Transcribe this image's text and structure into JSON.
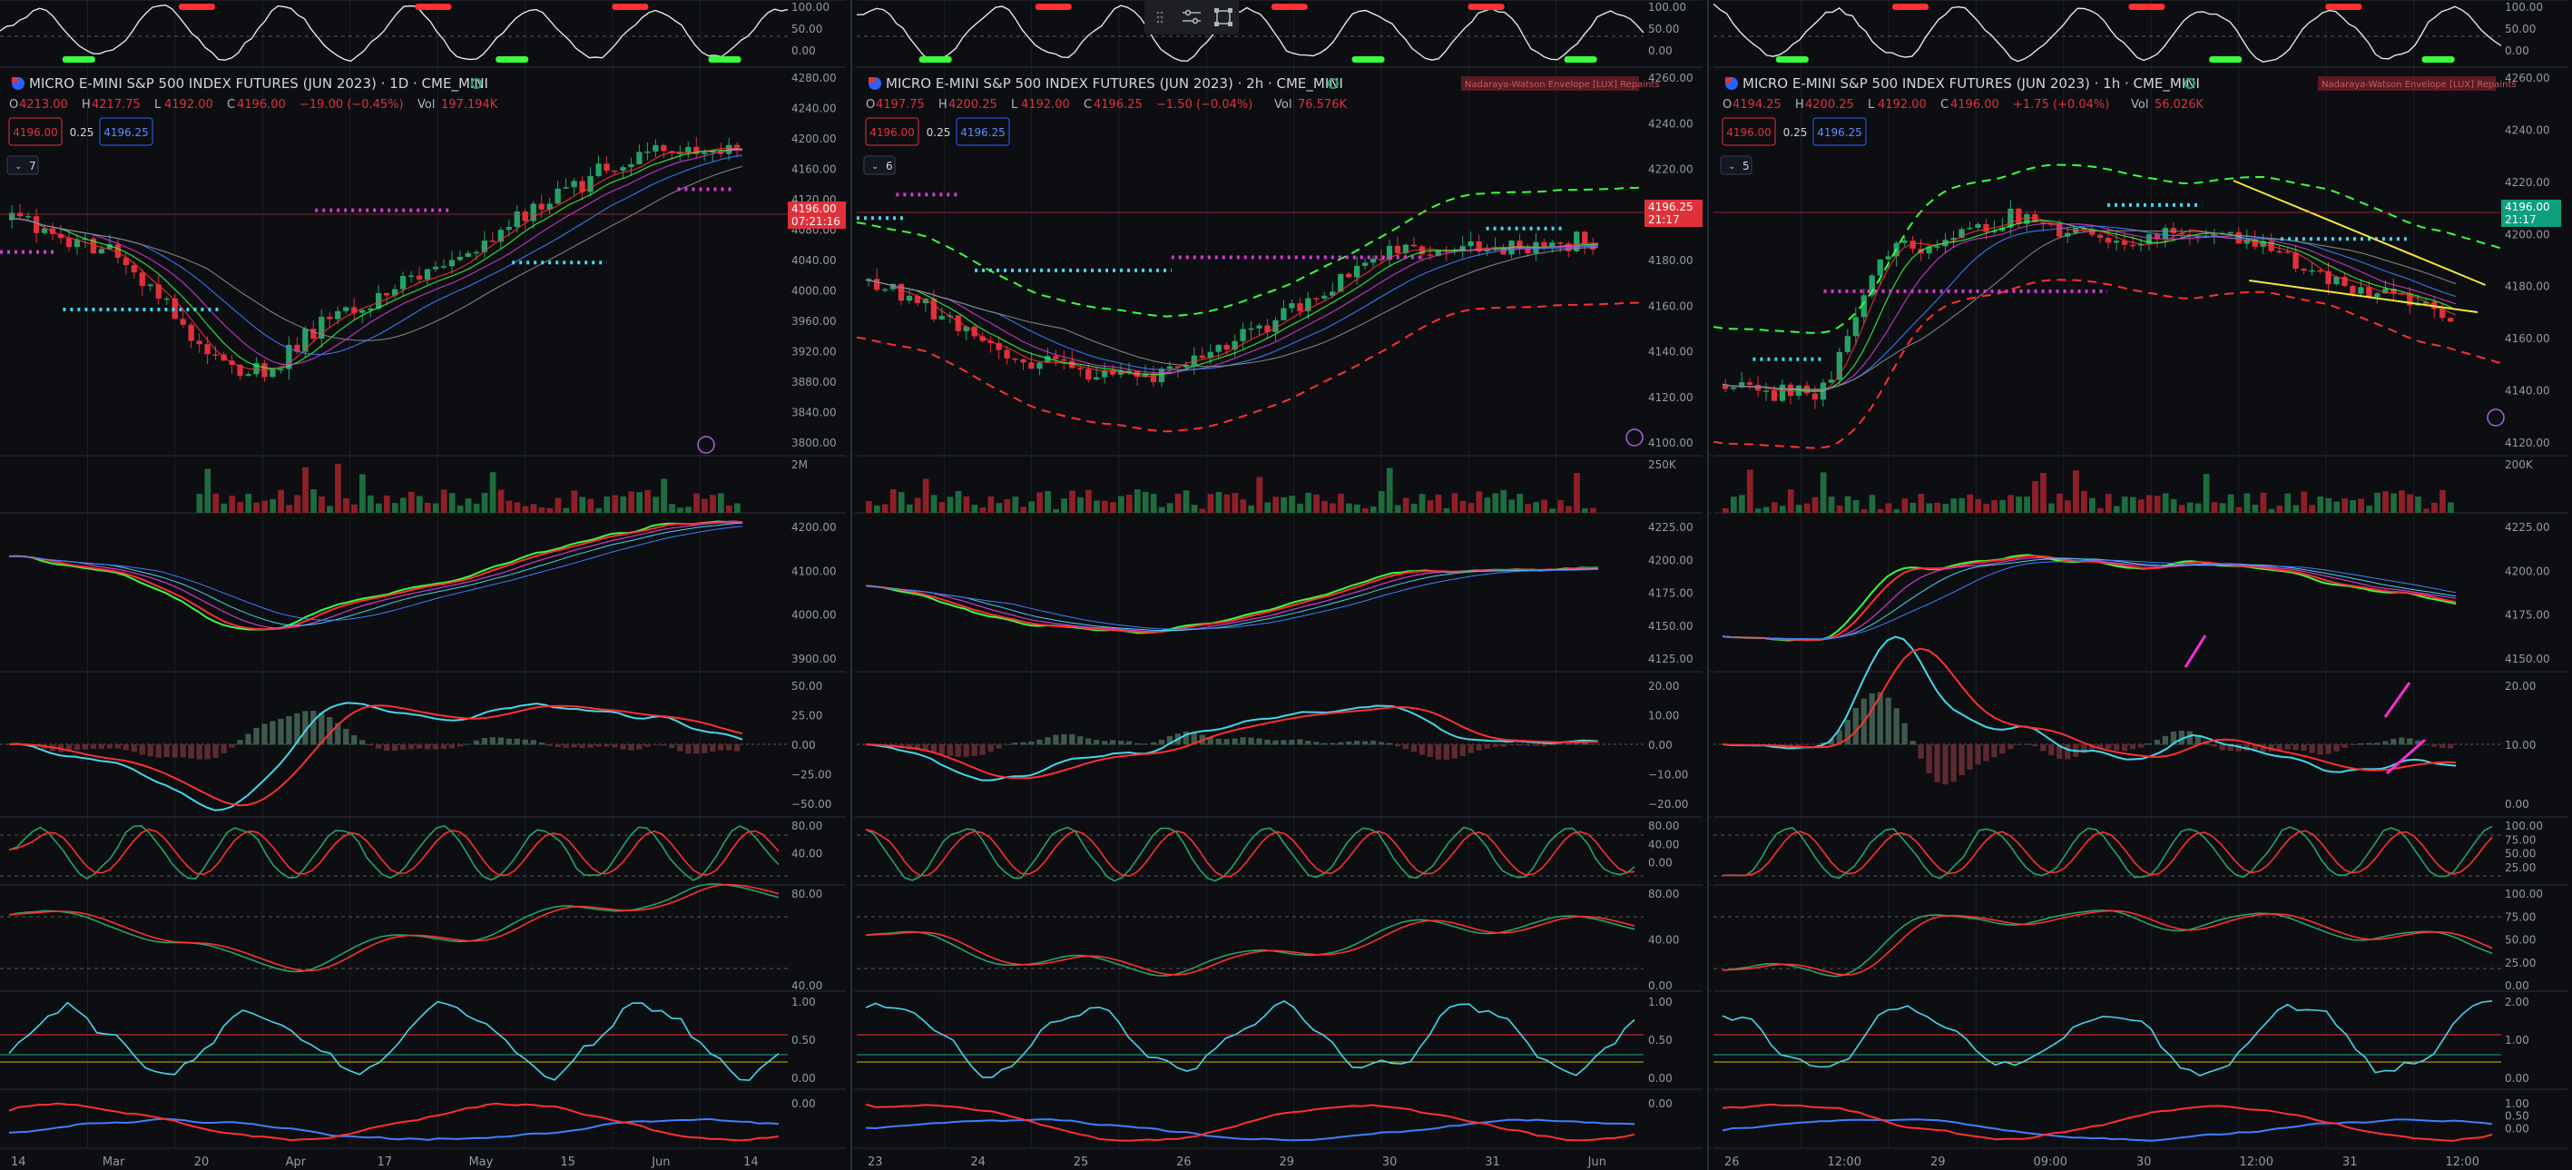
{
  "colors": {
    "background": "#0c0e12",
    "grid": "#1c1f26",
    "separator": "#2a2e39",
    "up": "#26a269",
    "down": "#e0313b",
    "bull_line": "#39ff3e",
    "bear_line": "#ff3030",
    "cyan": "#44d7e8",
    "magenta": "#d33bd0",
    "yellow": "#f5e640",
    "text": "#b2b5be",
    "axis_text": "#9598a1"
  },
  "panes": [
    {
      "title": "MICRO E-MINI S&P 500 INDEX FUTURES (JUN 2023) · 1D · CME_MINI",
      "ohlc": {
        "o": "4213.00",
        "h": "4217.75",
        "l": "4192.00",
        "c": "4196.00",
        "change": "−19.00 (−0.45%)",
        "vol": "197.194K"
      },
      "sell": "4196.00",
      "spread": "0.25",
      "buy": "4196.25",
      "legend_count": "7",
      "price_badge": {
        "price": "4196.00",
        "time": "07:21:16"
      },
      "price_ticks": [
        "4280.00",
        "4240.00",
        "4200.00",
        "4160.00",
        "4120.00",
        "4080.00",
        "4040.00",
        "4000.00",
        "3960.00",
        "3920.00",
        "3880.00",
        "3840.00",
        "3800.00"
      ],
      "osc_ticks": [
        "100.00",
        "50.00",
        "0.00"
      ],
      "vol_ticks": [
        "2M"
      ],
      "ma_ticks": [
        "4200.00",
        "4100.00",
        "4000.00",
        "3900.00"
      ],
      "macd_ticks": [
        "50.00",
        "25.00",
        "0.00",
        "−25.00",
        "−50.00"
      ],
      "stoch1_ticks": [
        "80.00",
        "40.00"
      ],
      "stoch2_ticks": [
        "80.00",
        "40.00"
      ],
      "p3_ticks": [
        "1.00",
        "0.50",
        "0.00"
      ],
      "p4_ticks": [
        "0.00"
      ],
      "time_labels": [
        "14",
        "Mar",
        "20",
        "Apr",
        "17",
        "May",
        "15",
        "Jun",
        "14"
      ]
    },
    {
      "title": "MICRO E-MINI S&P 500 INDEX FUTURES (JUN 2023) · 2h · CME_MINI",
      "ohlc": {
        "o": "4197.75",
        "h": "4200.25",
        "l": "4192.00",
        "c": "4196.25",
        "change": "−1.50 (−0.04%)",
        "vol": "76.576K"
      },
      "sell": "4196.00",
      "spread": "0.25",
      "buy": "4196.25",
      "legend_count": "6",
      "indicator_tag": "Nadaraya-Watson Envelope [LUX] Repaints",
      "price_badge": {
        "price": "4196.25",
        "time": "21:17"
      },
      "price_ticks": [
        "4260.00",
        "4240.00",
        "4220.00",
        "4200.00",
        "4180.00",
        "4160.00",
        "4140.00",
        "4120.00",
        "4100.00"
      ],
      "osc_ticks": [
        "100.00",
        "50.00",
        "0.00"
      ],
      "vol_ticks": [
        "250K"
      ],
      "ma_ticks": [
        "4225.00",
        "4200.00",
        "4175.00",
        "4150.00",
        "4125.00"
      ],
      "macd_ticks": [
        "20.00",
        "10.00",
        "0.00",
        "−10.00",
        "−20.00"
      ],
      "stoch1_ticks": [
        "80.00",
        "40.00",
        "0.00"
      ],
      "stoch2_ticks": [
        "80.00",
        "40.00",
        "0.00"
      ],
      "p3_ticks": [
        "1.00",
        "0.50",
        "0.00"
      ],
      "p4_ticks": [
        "0.00"
      ],
      "time_labels": [
        "23",
        "24",
        "25",
        "26",
        "29",
        "30",
        "31",
        "Jun"
      ]
    },
    {
      "title": "MICRO E-MINI S&P 500 INDEX FUTURES (JUN 2023) · 1h · CME_MINI",
      "ohlc": {
        "o": "4194.25",
        "h": "4200.25",
        "l": "4192.00",
        "c": "4196.00",
        "change": "+1.75 (+0.04%)",
        "vol": "56.026K"
      },
      "sell": "4196.00",
      "spread": "0.25",
      "buy": "4196.25",
      "legend_count": "5",
      "indicator_tag": "Nadaraya-Watson Envelope [LUX] Repaints",
      "price_badge": {
        "price": "4196.00",
        "time": "21:17"
      },
      "price_ticks": [
        "4260.00",
        "4240.00",
        "4220.00",
        "4200.00",
        "4180.00",
        "4160.00",
        "4140.00",
        "4120.00"
      ],
      "osc_ticks": [
        "100.00",
        "50.00",
        "0.00"
      ],
      "vol_ticks": [
        "200K"
      ],
      "ma_ticks": [
        "4225.00",
        "4200.00",
        "4175.00",
        "4150.00"
      ],
      "macd_ticks": [
        "20.00",
        "10.00",
        "0.00"
      ],
      "stoch1_ticks": [
        "100.00",
        "75.00",
        "50.00",
        "25.00"
      ],
      "stoch2_ticks": [
        "100.00",
        "75.00",
        "50.00",
        "25.00",
        "0.00"
      ],
      "p3_ticks": [
        "2.00",
        "1.00",
        "0.00"
      ],
      "p4_ticks": [
        "1.00",
        "0.50",
        "0.00"
      ],
      "time_labels": [
        "26",
        "12:00",
        "29",
        "09:00",
        "30",
        "12:00",
        "31",
        "12:00"
      ]
    }
  ]
}
